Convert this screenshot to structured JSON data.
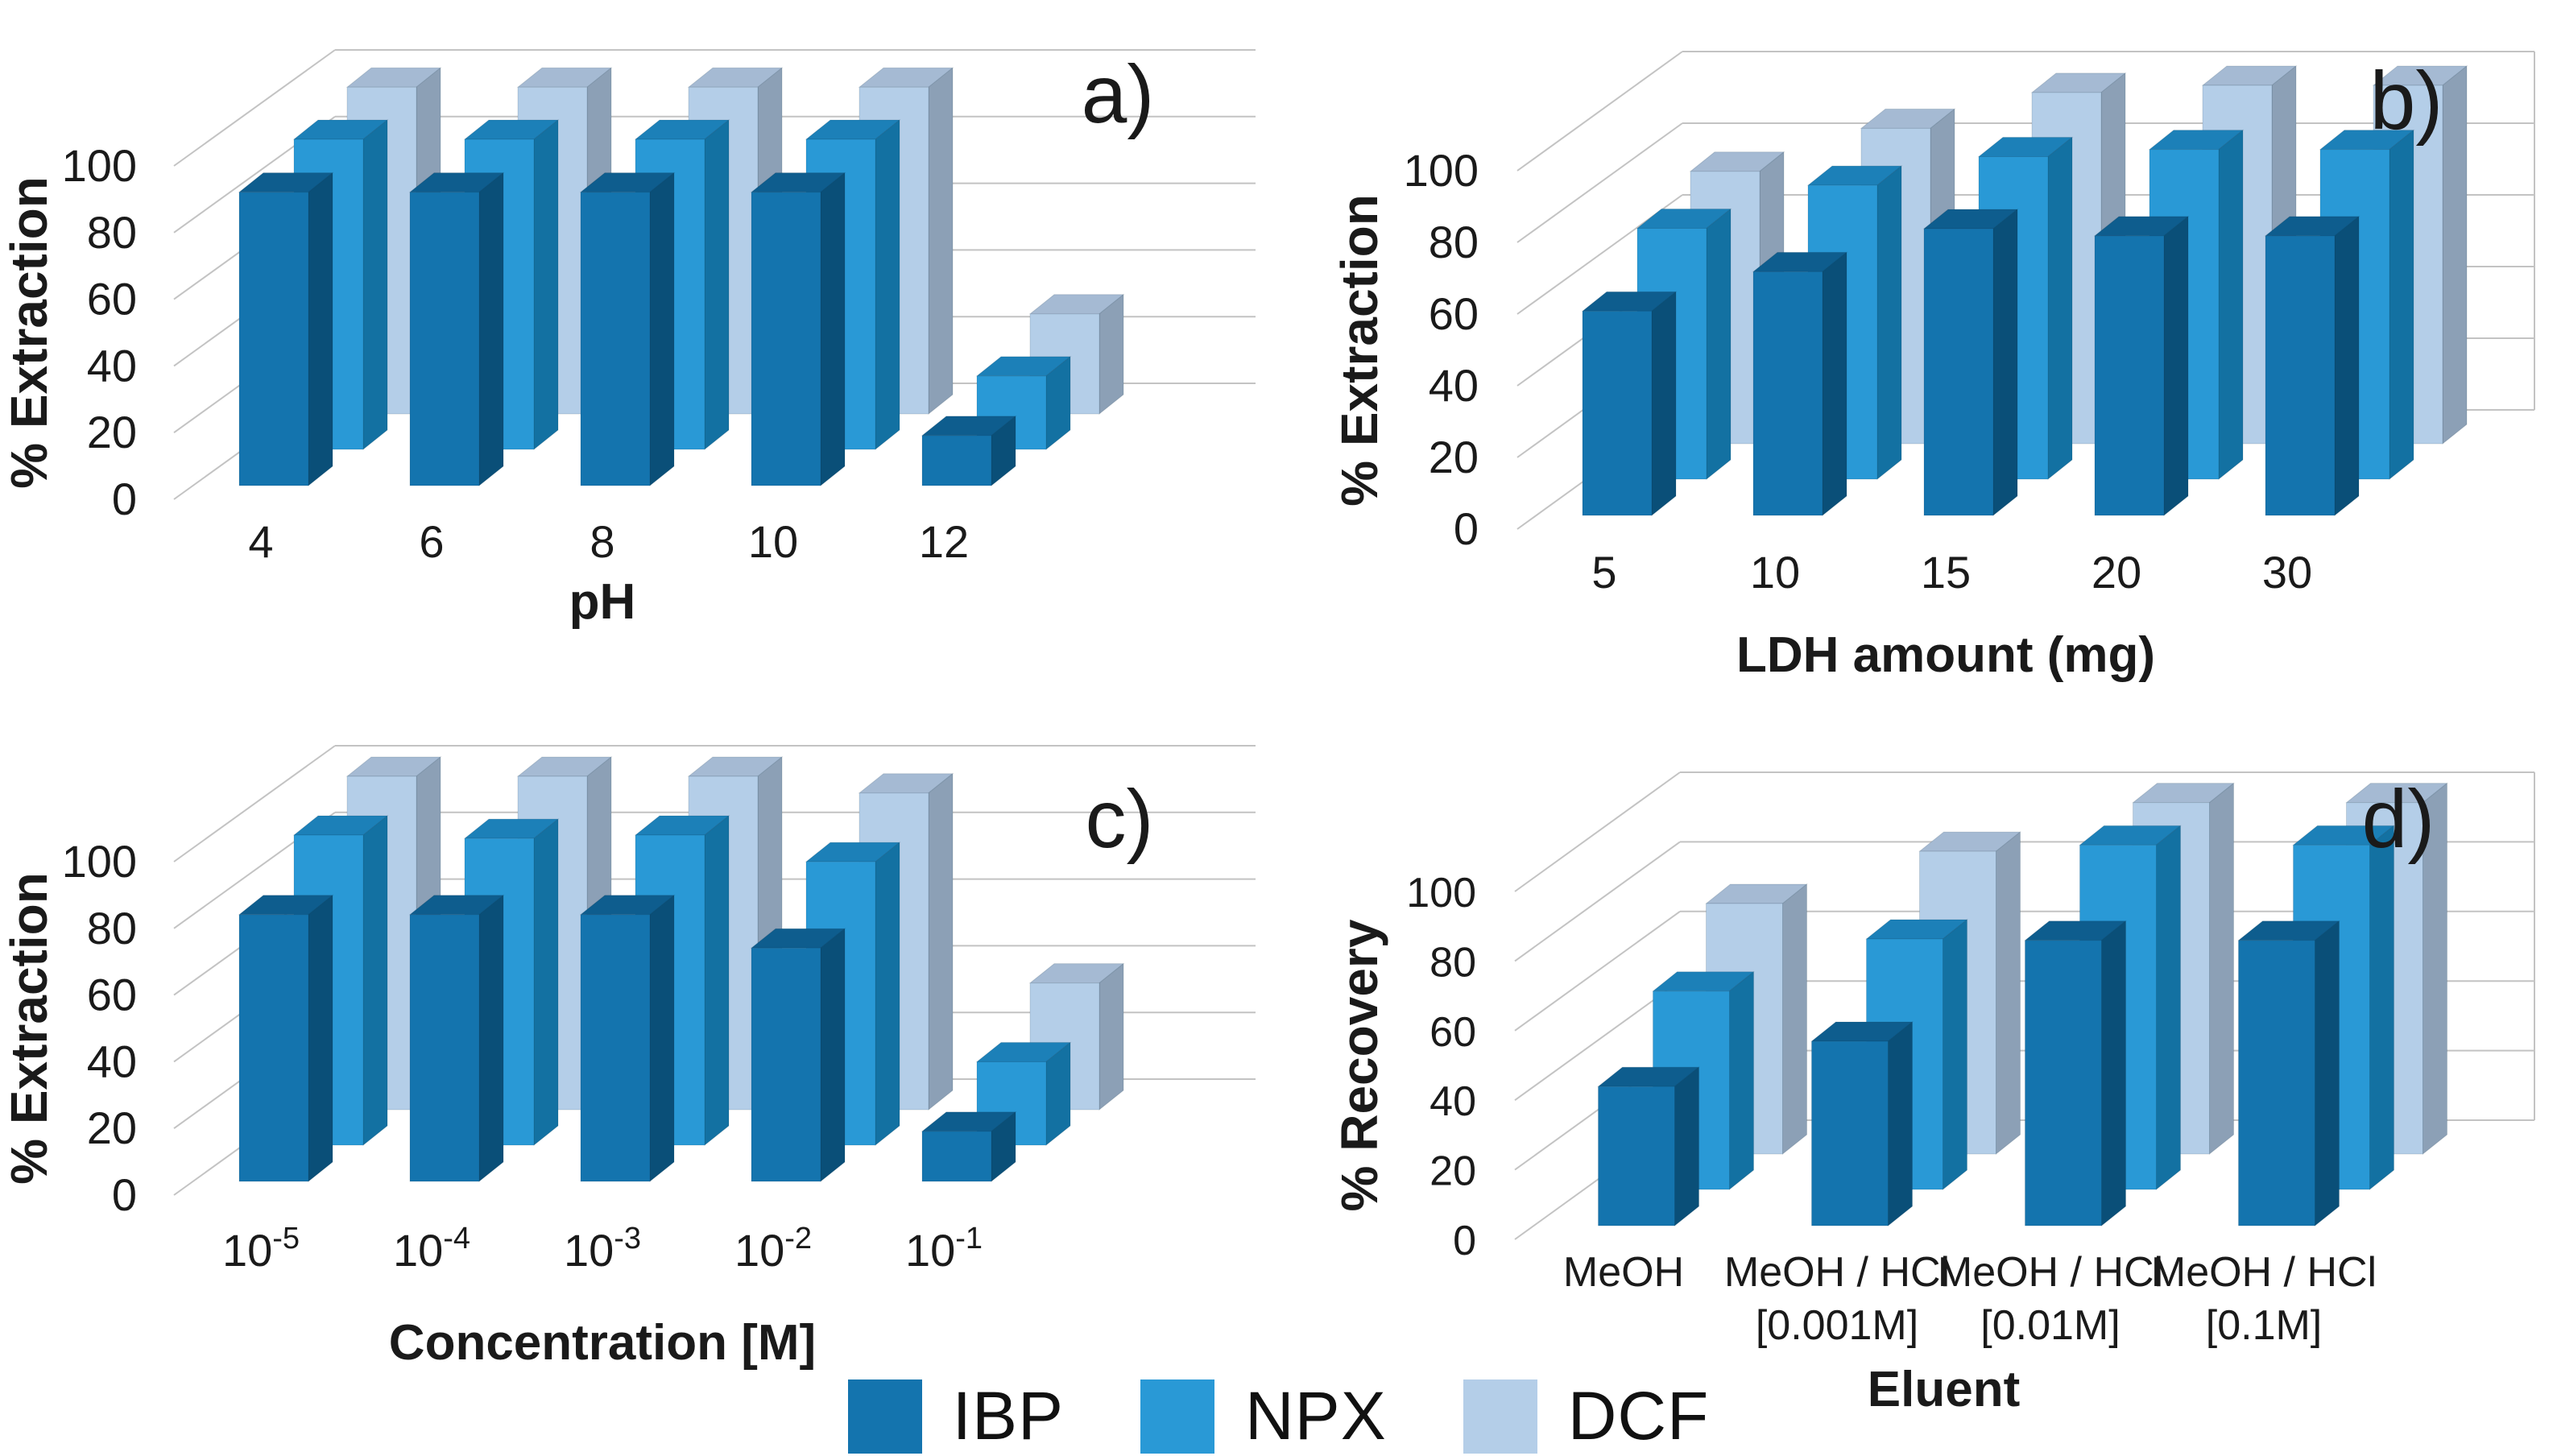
{
  "figure_type": "four-panel 3D bar chart figure",
  "chart_data": [
    {
      "id": "a",
      "type": "bar",
      "panel_label": "a)",
      "xlabel": "pH",
      "ylabel": "% Extraction",
      "categories": [
        "4",
        "6",
        "8",
        "10",
        "12"
      ],
      "yticks": [
        0,
        20,
        40,
        60,
        80,
        100
      ],
      "ylim": [
        0,
        100
      ],
      "grid": true,
      "series": [
        {
          "name": "IBP",
          "values": [
            88,
            88,
            88,
            88,
            15
          ]
        },
        {
          "name": "NPX",
          "values": [
            93,
            93,
            93,
            93,
            22
          ]
        },
        {
          "name": "DCF",
          "values": [
            98,
            98,
            98,
            98,
            30
          ]
        }
      ]
    },
    {
      "id": "b",
      "type": "bar",
      "panel_label": "b)",
      "xlabel": "LDH amount (mg)",
      "ylabel": "% Extraction",
      "categories": [
        "5",
        "10",
        "15",
        "20",
        "30"
      ],
      "yticks": [
        0,
        20,
        40,
        60,
        80,
        100
      ],
      "ylim": [
        0,
        100
      ],
      "grid": true,
      "series": [
        {
          "name": "IBP",
          "values": [
            57,
            68,
            80,
            78,
            78
          ]
        },
        {
          "name": "NPX",
          "values": [
            70,
            82,
            90,
            92,
            92
          ]
        },
        {
          "name": "DCF",
          "values": [
            76,
            88,
            98,
            100,
            100
          ]
        }
      ]
    },
    {
      "id": "c",
      "type": "bar",
      "panel_label": "c)",
      "xlabel": "Concentration [M]",
      "ylabel": "% Extraction",
      "categories": [
        {
          "base": "10",
          "sup": "-5"
        },
        {
          "base": "10",
          "sup": "-4"
        },
        {
          "base": "10",
          "sup": "-3"
        },
        {
          "base": "10",
          "sup": "-2"
        },
        {
          "base": "10",
          "sup": "-1"
        }
      ],
      "yticks": [
        0,
        20,
        40,
        60,
        80,
        100
      ],
      "ylim": [
        0,
        100
      ],
      "grid": true,
      "series": [
        {
          "name": "IBP",
          "values": [
            80,
            80,
            80,
            70,
            15
          ]
        },
        {
          "name": "NPX",
          "values": [
            93,
            92,
            93,
            85,
            25
          ]
        },
        {
          "name": "DCF",
          "values": [
            100,
            100,
            100,
            95,
            38
          ]
        }
      ]
    },
    {
      "id": "d",
      "type": "bar",
      "panel_label": "d)",
      "xlabel": "Eluent",
      "ylabel": "% Recovery",
      "categories": [
        {
          "lines": [
            "MeOH",
            ""
          ]
        },
        {
          "lines": [
            "MeOH / HCl",
            "[0.001M]"
          ]
        },
        {
          "lines": [
            "MeOH / HCl",
            "[0.01M]"
          ]
        },
        {
          "lines": [
            "MeOH / HCl",
            "[0.1M]"
          ]
        }
      ],
      "yticks": [
        0,
        20,
        40,
        60,
        80,
        100
      ],
      "ylim": [
        0,
        100
      ],
      "grid": true,
      "series": [
        {
          "name": "IBP",
          "values": [
            40,
            53,
            82,
            82
          ]
        },
        {
          "name": "NPX",
          "values": [
            57,
            72,
            99,
            99
          ]
        },
        {
          "name": "DCF",
          "values": [
            72,
            87,
            101,
            101
          ]
        }
      ]
    }
  ],
  "legend": {
    "position": "bottom-center",
    "items": [
      {
        "label": "IBP"
      },
      {
        "label": "NPX"
      },
      {
        "label": "DCF"
      }
    ]
  },
  "colors": {
    "IBP": {
      "front": "#1474AE",
      "top": "#0E5D8E",
      "side": "#0A4F78"
    },
    "NPX": {
      "front": "#2999D6",
      "top": "#1C80B8",
      "side": "#1371A2"
    },
    "DCF": {
      "front": "#B4CEE8",
      "top": "#A5BAD3",
      "side": "#8CA0B6"
    },
    "grid": "#C3C3C3",
    "text": "#1A1A1A",
    "background": "#FFFFFF"
  }
}
